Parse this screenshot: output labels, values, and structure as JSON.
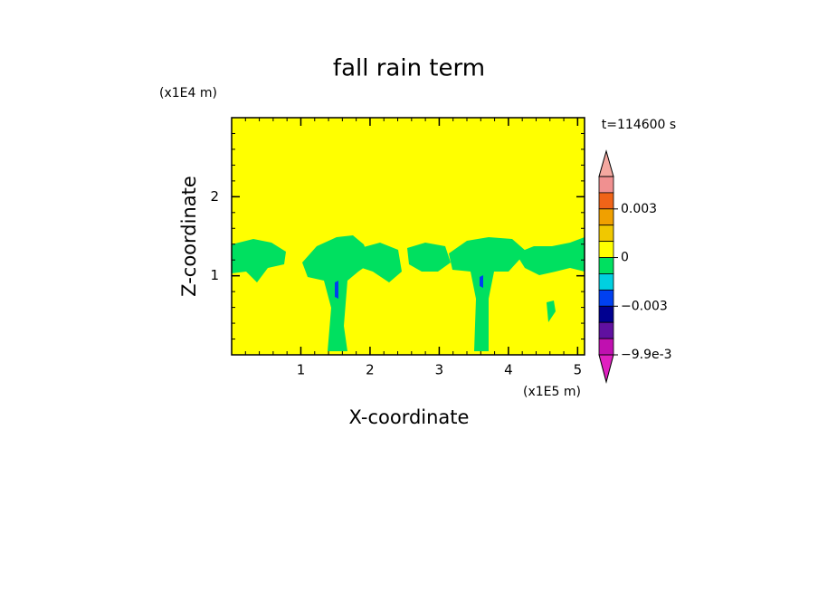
{
  "chart_data": {
    "type": "contour",
    "title": "fall rain term",
    "x_label": "X-coordinate",
    "y_label": "Z-coordinate",
    "x_unit": "(x1E5 m)",
    "y_unit": "(x1E4 m)",
    "time_label": "t=114600 s",
    "xlim": [
      0,
      5.1
    ],
    "xticks": [
      1,
      2,
      3,
      4,
      5
    ],
    "ylim": [
      0,
      3
    ],
    "yticks": [
      1,
      2
    ],
    "background_color": "#ffff00",
    "colorbar": {
      "levels": [
        0.005,
        0.004,
        0.003,
        0.002,
        0.001,
        0,
        -0.001,
        -0.002,
        -0.003,
        -0.004,
        -0.0069,
        -0.0099
      ],
      "colors": [
        "#f09090",
        "#f06418",
        "#f0a000",
        "#f0c800",
        "#ffff00",
        "#00e060",
        "#00d0e0",
        "#0040f0",
        "#000090",
        "#6010a0",
        "#c010b0"
      ],
      "over_color": "#f4a8a0",
      "under_color": "#e020c0",
      "ticks": [
        {
          "value": 0.003,
          "label": "0.003"
        },
        0,
        {
          "value": -0.003,
          "label": "−0.003"
        },
        {
          "value": -0.0099,
          "label": "−9.9e-3"
        }
      ]
    }
  }
}
